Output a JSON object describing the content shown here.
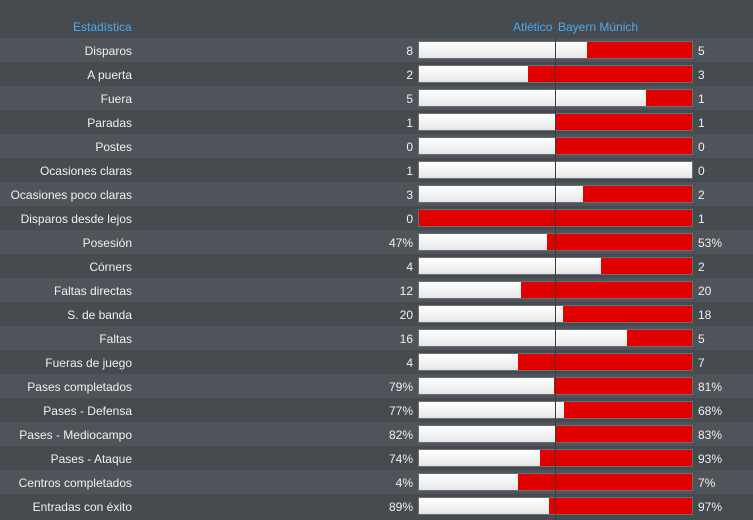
{
  "header": {
    "stat_label": "Estadística",
    "home_team": "Atlético",
    "away_team": "Bayern Múnich"
  },
  "colors": {
    "background": "#464b50",
    "alt_row": "#4f545a",
    "header_text": "#4ea8ee",
    "home_bar": "#ffffff",
    "away_bar": "#e00000"
  },
  "stats": [
    {
      "label": "Disparos",
      "home": "8",
      "away": "5",
      "home_share": 0.615
    },
    {
      "label": "A puerta",
      "home": "2",
      "away": "3",
      "home_share": 0.4
    },
    {
      "label": "Fuera",
      "home": "5",
      "away": "1",
      "home_share": 0.833
    },
    {
      "label": "Paradas",
      "home": "1",
      "away": "1",
      "home_share": 0.5
    },
    {
      "label": "Postes",
      "home": "0",
      "away": "0",
      "home_share": 0.5
    },
    {
      "label": "Ocasiones claras",
      "home": "1",
      "away": "0",
      "home_share": 1.0
    },
    {
      "label": "Ocasiones poco claras",
      "home": "3",
      "away": "2",
      "home_share": 0.6
    },
    {
      "label": "Disparos desde lejos",
      "home": "0",
      "away": "1",
      "home_share": 0.0
    },
    {
      "label": "Posesión",
      "home": "47%",
      "away": "53%",
      "home_share": 0.47
    },
    {
      "label": "Córners",
      "home": "4",
      "away": "2",
      "home_share": 0.667
    },
    {
      "label": "Faltas directas",
      "home": "12",
      "away": "20",
      "home_share": 0.375
    },
    {
      "label": "S. de banda",
      "home": "20",
      "away": "18",
      "home_share": 0.526
    },
    {
      "label": "Faltas",
      "home": "16",
      "away": "5",
      "home_share": 0.762
    },
    {
      "label": "Fueras de juego",
      "home": "4",
      "away": "7",
      "home_share": 0.364
    },
    {
      "label": "Pases completados",
      "home": "79%",
      "away": "81%",
      "home_share": 0.494
    },
    {
      "label": "Pases - Defensa",
      "home": "77%",
      "away": "68%",
      "home_share": 0.531
    },
    {
      "label": "Pases - Mediocampo",
      "home": "82%",
      "away": "83%",
      "home_share": 0.497
    },
    {
      "label": "Pases - Ataque",
      "home": "74%",
      "away": "93%",
      "home_share": 0.443
    },
    {
      "label": "Centros completados",
      "home": "4%",
      "away": "7%",
      "home_share": 0.364
    },
    {
      "label": "Entradas con éxito",
      "home": "89%",
      "away": "97%",
      "home_share": 0.478
    }
  ]
}
